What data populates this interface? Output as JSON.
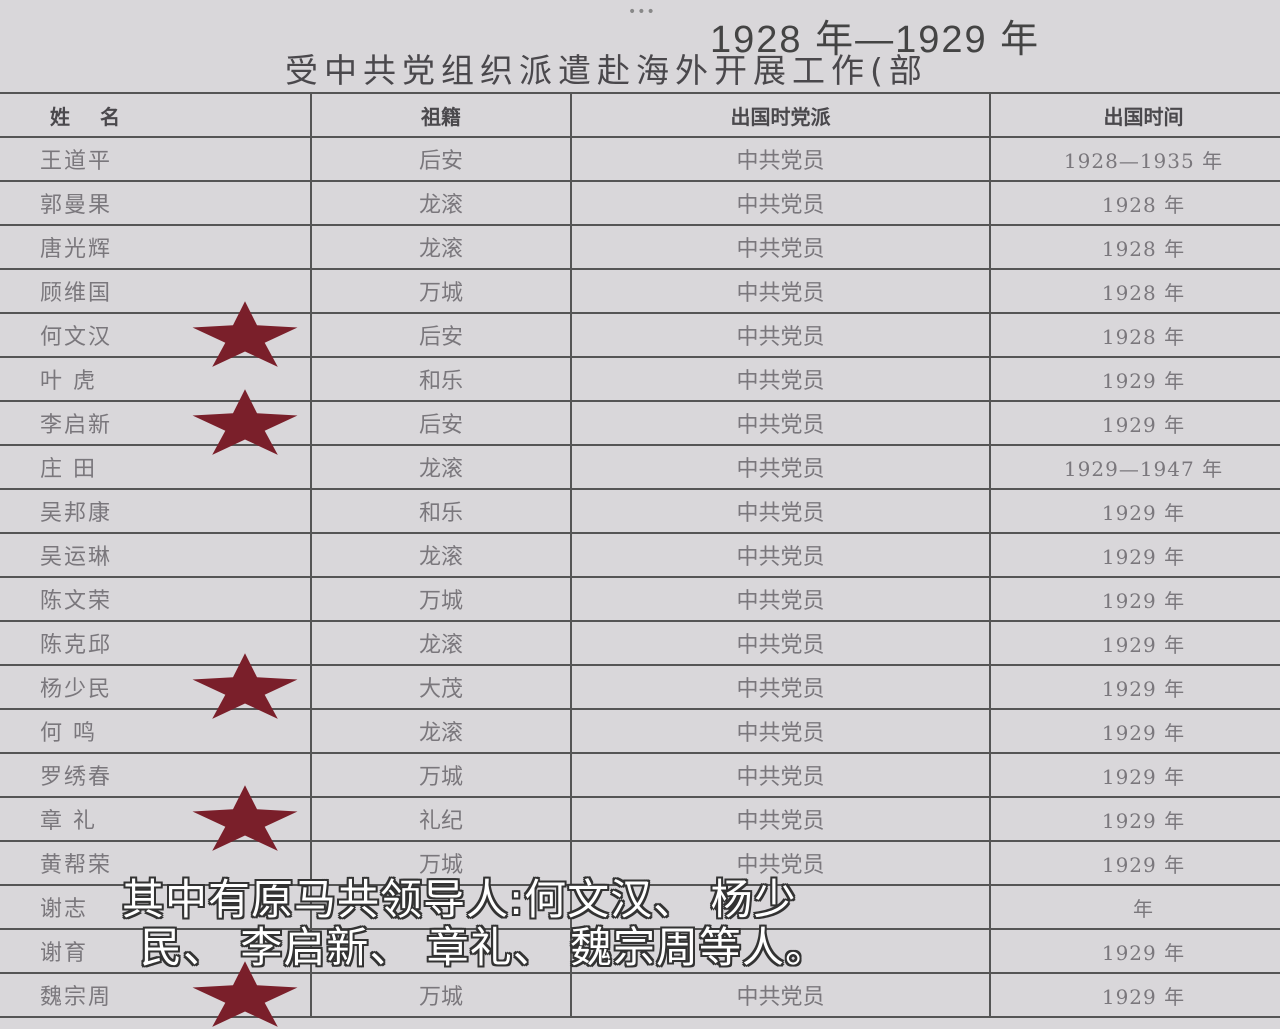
{
  "header": {
    "dots": "•••",
    "title_line1": "1928 年—1929 年",
    "title_line2": "受中共党组织派遣赴海外开展工作(部"
  },
  "table": {
    "columns": [
      "姓名",
      "祖籍",
      "出国时党派",
      "出国时间"
    ],
    "rows": [
      {
        "name": "王道平",
        "origin": "后安",
        "party": "中共党员",
        "time": "1928—1935 年",
        "star": false
      },
      {
        "name": "郭曼果",
        "origin": "龙滚",
        "party": "中共党员",
        "time": "1928 年",
        "star": false
      },
      {
        "name": "唐光辉",
        "origin": "龙滚",
        "party": "中共党员",
        "time": "1928 年",
        "star": false
      },
      {
        "name": "顾维国",
        "origin": "万城",
        "party": "中共党员",
        "time": "1928 年",
        "star": false
      },
      {
        "name": "何文汉",
        "origin": "后安",
        "party": "中共党员",
        "time": "1928 年",
        "star": true
      },
      {
        "name": "叶 虎",
        "origin": "和乐",
        "party": "中共党员",
        "time": "1929 年",
        "star": false
      },
      {
        "name": "李启新",
        "origin": "后安",
        "party": "中共党员",
        "time": "1929 年",
        "star": true
      },
      {
        "name": "庄 田",
        "origin": "龙滚",
        "party": "中共党员",
        "time": "1929—1947 年",
        "star": false
      },
      {
        "name": "吴邦康",
        "origin": "和乐",
        "party": "中共党员",
        "time": "1929 年",
        "star": false
      },
      {
        "name": "吴运琳",
        "origin": "龙滚",
        "party": "中共党员",
        "time": "1929 年",
        "star": false
      },
      {
        "name": "陈文荣",
        "origin": "万城",
        "party": "中共党员",
        "time": "1929 年",
        "star": false
      },
      {
        "name": "陈克邱",
        "origin": "龙滚",
        "party": "中共党员",
        "time": "1929 年",
        "star": false
      },
      {
        "name": "杨少民",
        "origin": "大茂",
        "party": "中共党员",
        "time": "1929 年",
        "star": true
      },
      {
        "name": "何 鸣",
        "origin": "龙滚",
        "party": "中共党员",
        "time": "1929 年",
        "star": false
      },
      {
        "name": "罗绣春",
        "origin": "万城",
        "party": "中共党员",
        "time": "1929 年",
        "star": false
      },
      {
        "name": "章 礼",
        "origin": "礼纪",
        "party": "中共党员",
        "time": "1929 年",
        "star": true
      },
      {
        "name": "黄帮荣",
        "origin": "万城",
        "party": "中共党员",
        "time": "1929 年",
        "star": false
      },
      {
        "name": "谢志",
        "origin": "",
        "party": "",
        "time": "年",
        "star": false
      },
      {
        "name": "谢育",
        "origin": "",
        "party": "",
        "time": "1929 年",
        "star": false
      },
      {
        "name": "魏宗周",
        "origin": "万城",
        "party": "中共党员",
        "time": "1929 年",
        "star": true
      }
    ]
  },
  "subtitle": {
    "line1": "其中有原马共领导人:何文汉、 杨少",
    "line2": "民、 李启新、 章礼、 魏宗周等人。"
  },
  "colors": {
    "star": "#7a1f2a",
    "paper": "#d9d7da"
  }
}
